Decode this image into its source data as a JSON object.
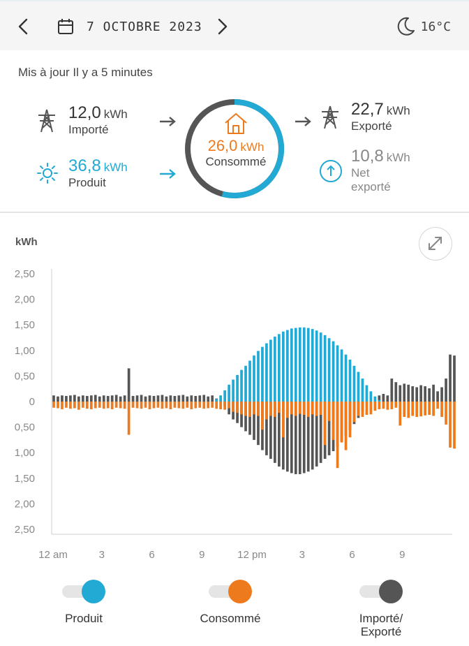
{
  "header": {
    "date": "7 OCTOBRE 2023",
    "temperature": "16°C"
  },
  "summary": {
    "updated": "Mis à jour Il y a 5 minutes",
    "imported": {
      "value": "12,0",
      "unit": "kWh",
      "label": "Importé"
    },
    "produced": {
      "value": "36,8",
      "unit": "kWh",
      "label": "Produit"
    },
    "consumed": {
      "value": "26,0",
      "unit": "kWh",
      "label": "Consommé"
    },
    "exported": {
      "value": "22,7",
      "unit": "kWh",
      "label": "Exporté"
    },
    "net_exported": {
      "value": "10,8",
      "unit": "kWh",
      "label_line1": "Net",
      "label_line2": "exporté"
    }
  },
  "chart_data": {
    "type": "bar",
    "ylabel": "kWh",
    "ylim": [
      -2.5,
      2.5
    ],
    "y_tick_labels": [
      "2,50",
      "2,00",
      "1,50",
      "1,00",
      "0,50",
      "0",
      "0,50",
      "1,00",
      "1,50",
      "2,00",
      "2,50"
    ],
    "x_tick_labels": [
      "12 am",
      "3",
      "6",
      "9",
      "12 pm",
      "3",
      "6",
      "9"
    ],
    "x_tick_hours": [
      0,
      3,
      6,
      9,
      12,
      15,
      18,
      21
    ],
    "interval_minutes": 15,
    "series": [
      {
        "name": "Produit",
        "color": "#22a9d4",
        "values": [
          0,
          0,
          0,
          0,
          0,
          0,
          0,
          0,
          0,
          0,
          0,
          0,
          0,
          0,
          0,
          0,
          0,
          0,
          0,
          0,
          0,
          0,
          0,
          0,
          0,
          0,
          0,
          0,
          0,
          0,
          0,
          0,
          0,
          0,
          0,
          0,
          0,
          0,
          0,
          0.05,
          0.12,
          0.22,
          0.33,
          0.43,
          0.52,
          0.62,
          0.7,
          0.8,
          0.9,
          0.99,
          1.07,
          1.14,
          1.21,
          1.27,
          1.32,
          1.37,
          1.4,
          1.43,
          1.44,
          1.45,
          1.45,
          1.44,
          1.42,
          1.39,
          1.35,
          1.3,
          1.24,
          1.18,
          1.1,
          1.02,
          0.92,
          0.82,
          0.7,
          0.58,
          0.45,
          0.32,
          0.2,
          0.1,
          0.03,
          0,
          0,
          0,
          0,
          0,
          0,
          0,
          0,
          0,
          0,
          0,
          0,
          0,
          0,
          0,
          0,
          0
        ]
      },
      {
        "name": "Consommé",
        "color": "#ee7a1e",
        "values": [
          -0.12,
          -0.13,
          -0.15,
          -0.12,
          -0.14,
          -0.13,
          -0.16,
          -0.12,
          -0.14,
          -0.15,
          -0.13,
          -0.12,
          -0.14,
          -0.13,
          -0.15,
          -0.12,
          -0.13,
          -0.14,
          -0.65,
          -0.12,
          -0.13,
          -0.14,
          -0.12,
          -0.15,
          -0.13,
          -0.12,
          -0.14,
          -0.13,
          -0.15,
          -0.12,
          -0.13,
          -0.14,
          -0.12,
          -0.15,
          -0.13,
          -0.12,
          -0.14,
          -0.13,
          -0.12,
          -0.14,
          -0.15,
          -0.16,
          -0.13,
          -0.2,
          -0.22,
          -0.25,
          -0.28,
          -0.3,
          -0.25,
          -0.28,
          -0.55,
          -0.35,
          -0.28,
          -0.3,
          -0.22,
          -0.7,
          -0.32,
          -0.25,
          -0.28,
          -0.24,
          -0.26,
          -0.3,
          -0.25,
          -0.28,
          -0.26,
          -0.85,
          -0.38,
          -0.75,
          -1.3,
          -0.8,
          -0.95,
          -0.7,
          -0.4,
          -0.28,
          -0.3,
          -0.26,
          -0.25,
          -0.18,
          -0.15,
          -0.14,
          -0.16,
          -0.15,
          -0.12,
          -0.47,
          -0.3,
          -0.32,
          -0.28,
          -0.3,
          -0.29,
          -0.27,
          -0.26,
          -0.28,
          -0.14,
          -0.3,
          -0.45,
          -0.9,
          -0.92
        ]
      },
      {
        "name": "Importé/Exporté",
        "color": "#555555",
        "values": [
          0.12,
          0.1,
          0.12,
          0.11,
          0.12,
          0.13,
          0.1,
          0.12,
          0.11,
          0.12,
          0.13,
          0.1,
          0.12,
          0.11,
          0.12,
          0.13,
          0.1,
          0.12,
          0.65,
          0.11,
          0.12,
          0.13,
          0.1,
          0.12,
          0.11,
          0.12,
          0.13,
          0.1,
          0.12,
          0.11,
          0.12,
          0.13,
          0.1,
          0.12,
          0.11,
          0.12,
          0.13,
          0.1,
          0.12,
          0.06,
          0.02,
          -0.1,
          -0.25,
          -0.35,
          -0.42,
          -0.5,
          -0.58,
          -0.65,
          -0.75,
          -0.85,
          -0.95,
          -1.05,
          -1.12,
          -1.2,
          -1.27,
          -1.33,
          -1.37,
          -1.4,
          -1.42,
          -1.42,
          -1.4,
          -1.37,
          -1.33,
          -1.27,
          -1.2,
          -1.12,
          -1.05,
          -0.97,
          -0.88,
          -0.78,
          -0.68,
          -0.56,
          -0.44,
          -0.32,
          -0.2,
          0,
          0,
          0,
          0.12,
          0.15,
          0.12,
          0.45,
          0.38,
          0.32,
          0.35,
          0.33,
          0.3,
          0.28,
          0.32,
          0.3,
          0.26,
          0.33,
          0.2,
          0.28,
          0.45,
          0.92,
          0.9
        ]
      }
    ]
  },
  "legend": [
    {
      "label": "Produit",
      "color": "#22a9d4"
    },
    {
      "label": "Consommé",
      "color": "#ee7a1e"
    },
    {
      "label_line1": "Importé/",
      "label_line2": "Exporté",
      "color": "#555555"
    }
  ]
}
